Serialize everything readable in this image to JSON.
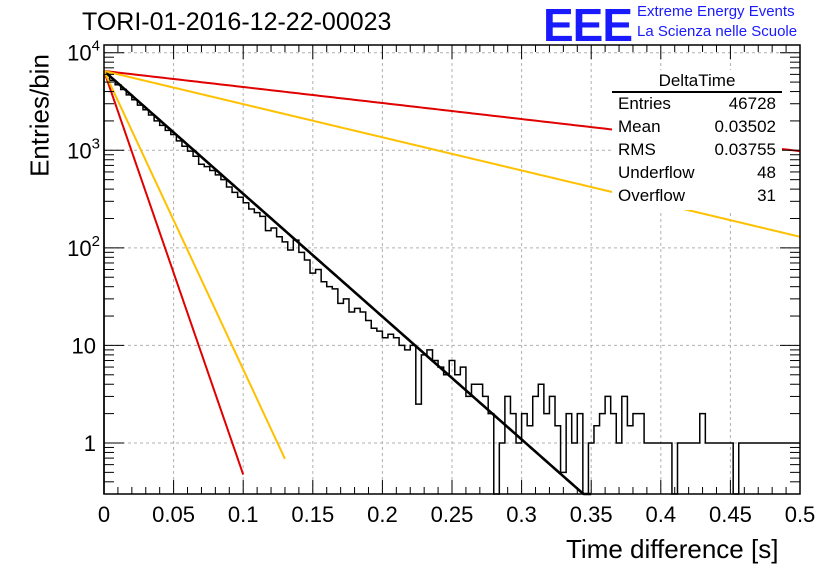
{
  "title": "TORI-01-2016-12-22-00023",
  "logo": {
    "mark": "EEE",
    "line1": "Extreme Energy Events",
    "line2": "La Scienza nelle Scuole"
  },
  "stats": {
    "name": "DeltaTime",
    "rows": [
      {
        "key": "Entries",
        "value": "46728"
      },
      {
        "key": "Mean",
        "value": "0.03502"
      },
      {
        "key": "RMS",
        "value": "0.03755"
      },
      {
        "key": "Underflow",
        "value": "48"
      },
      {
        "key": "Overflow",
        "value": "31"
      }
    ]
  },
  "colors": {
    "histogram": "#000000",
    "fit": "#000000",
    "red": "#e00000",
    "yellow": "#ffc000",
    "grid": "#b0b0b0",
    "logo": "#1a1aff"
  },
  "chart_data": {
    "type": "line",
    "xlabel": "Time difference [s]",
    "ylabel": "Entries/bin",
    "xlim": [
      0,
      0.5
    ],
    "ylim": [
      0.3,
      12000
    ],
    "yscale": "log",
    "grid": true,
    "xticks": [
      "0",
      "0.05",
      "0.1",
      "0.15",
      "0.2",
      "0.25",
      "0.3",
      "0.35",
      "0.4",
      "0.45",
      "0.5"
    ],
    "yticks": [
      {
        "value": 1,
        "base": "1",
        "exp": ""
      },
      {
        "value": 10,
        "base": "10",
        "exp": ""
      },
      {
        "value": 100,
        "base": "10",
        "exp": "2"
      },
      {
        "value": 1000,
        "base": "10",
        "exp": "3"
      },
      {
        "value": 10000,
        "base": "10",
        "exp": "4"
      }
    ],
    "histogram": {
      "bin_width": 0.004,
      "values": [
        6000,
        5200,
        4700,
        4200,
        3700,
        3300,
        2900,
        2600,
        2300,
        2000,
        1800,
        1600,
        1450,
        1250,
        1100,
        980,
        870,
        720,
        680,
        620,
        560,
        500,
        420,
        370,
        330,
        290,
        250,
        230,
        210,
        150,
        160,
        130,
        115,
        95,
        120,
        90,
        75,
        55,
        60,
        45,
        40,
        38,
        27,
        30,
        22,
        24,
        22,
        18,
        15,
        14,
        12,
        13,
        12,
        10,
        9,
        10,
        2.5,
        8,
        9,
        7,
        6,
        5,
        7,
        5,
        6,
        3,
        4,
        4,
        3,
        2,
        0.3,
        1,
        3,
        2,
        1,
        2,
        1.5,
        3,
        4,
        2,
        3,
        1.5,
        0.5,
        2,
        1,
        2,
        0.3,
        1,
        1.5,
        2,
        3,
        2,
        1,
        3,
        1.5,
        2,
        2,
        1,
        1,
        1,
        1,
        1,
        0.3,
        1,
        1,
        1,
        1,
        2,
        1,
        1,
        1,
        1,
        1,
        0.3,
        1,
        1,
        1,
        1,
        1,
        1,
        1,
        1,
        1,
        1,
        1,
        1
      ]
    },
    "series": [
      {
        "color": "black",
        "y0": 6500,
        "tau": 0.0345,
        "x_end": 0.35
      },
      {
        "color": "red",
        "y0": 6500,
        "tau": 0.0105,
        "x_end": 0.1
      },
      {
        "color": "red",
        "y0": 6500,
        "tau": 0.2644,
        "x_end": 0.5
      },
      {
        "color": "yellow",
        "y0": 6500,
        "tau": 0.0142,
        "x_end": 0.13
      },
      {
        "color": "yellow",
        "y0": 6500,
        "tau": 0.1278,
        "x_end": 0.5
      }
    ]
  }
}
